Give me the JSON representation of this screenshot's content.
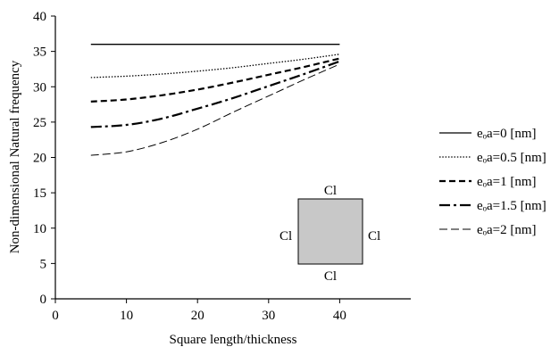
{
  "chart_data": {
    "type": "line",
    "xlabel": "Square length/thickness",
    "ylabel": "Non-dimensional Natural frequency",
    "xlim": [
      0,
      50
    ],
    "ylim": [
      0,
      40
    ],
    "xticks": [
      0,
      10,
      20,
      30,
      40
    ],
    "yticks": [
      0,
      5,
      10,
      15,
      20,
      25,
      30,
      35,
      40
    ],
    "grid": false,
    "legend_position": "right",
    "x": [
      5,
      10,
      15,
      20,
      25,
      30,
      35,
      40
    ],
    "series": [
      {
        "name": "eₒa=0 [nm]",
        "dash": "solid",
        "width": 1.3,
        "values": [
          36.0,
          36.0,
          36.0,
          36.0,
          36.0,
          36.0,
          36.0,
          36.0
        ]
      },
      {
        "name": "eₒa=0.5 [nm]",
        "dash": "dotted",
        "width": 1.3,
        "values": [
          31.3,
          31.5,
          31.8,
          32.2,
          32.7,
          33.3,
          33.9,
          34.6
        ]
      },
      {
        "name": "eₒa=1 [nm]",
        "dash": "dashed",
        "width": 2.2,
        "values": [
          27.9,
          28.2,
          28.8,
          29.6,
          30.6,
          31.7,
          32.8,
          34.0
        ]
      },
      {
        "name": "eₒa=1.5 [nm]",
        "dash": "dashdot",
        "width": 2.2,
        "values": [
          24.3,
          24.6,
          25.5,
          26.9,
          28.4,
          30.1,
          31.8,
          33.6
        ]
      },
      {
        "name": "eₒa=2 [nm]",
        "dash": "longdash",
        "width": 1.0,
        "values": [
          20.3,
          20.8,
          22.1,
          24.0,
          26.4,
          28.7,
          31.0,
          33.2
        ]
      }
    ],
    "boundary_conditions": {
      "top": "Cl",
      "bottom": "Cl",
      "left": "Cl",
      "right": "Cl"
    }
  }
}
